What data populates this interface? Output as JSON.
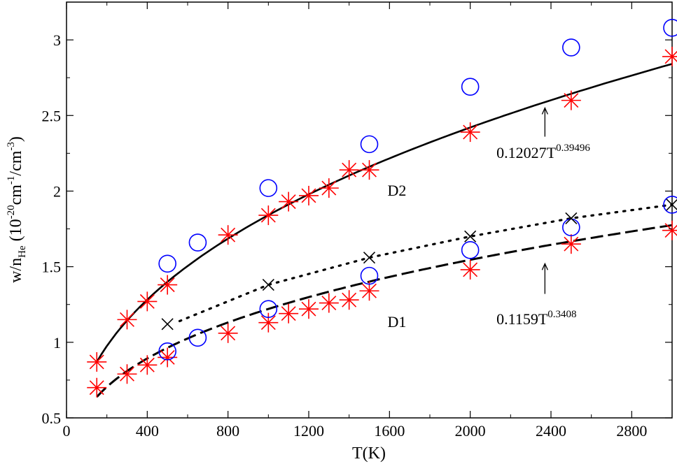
{
  "chart_data": {
    "type": "scatter",
    "title": "",
    "xlabel": "T(K)",
    "ylabel_parts": {
      "main": "w/n",
      "sub": "He",
      "paren_open": " (10",
      "exp1": "-20",
      "mid": "cm",
      "exp2": "-1",
      "slash": "/cm",
      "exp3": "-3",
      "paren_close": ")"
    },
    "xlim": [
      0,
      3000
    ],
    "ylim": [
      0.5,
      3.25
    ],
    "xticks": [
      0,
      400,
      800,
      1200,
      1600,
      2000,
      2400,
      2800
    ],
    "yticks": [
      0.5,
      1,
      1.5,
      2,
      2.5,
      3
    ],
    "grid": false,
    "colors": {
      "star": "#ff0000",
      "circle": "#0000ff",
      "cross": "#000000",
      "line": "#000000"
    },
    "series": [
      {
        "marker": "star",
        "x": [
          150,
          300,
          400,
          500,
          800,
          1000,
          1100,
          1200,
          1300,
          1400,
          1500,
          2000,
          2500,
          3000
        ],
        "y": [
          0.87,
          1.15,
          1.27,
          1.38,
          1.71,
          1.84,
          1.93,
          1.97,
          2.02,
          2.14,
          2.14,
          2.39,
          2.6,
          2.89
        ]
      },
      {
        "marker": "circle",
        "x": [
          500,
          650,
          1000,
          1500,
          2000,
          2500,
          3000
        ],
        "y": [
          1.52,
          1.66,
          2.02,
          2.31,
          2.69,
          2.95,
          3.08
        ]
      },
      {
        "marker": "star",
        "x": [
          150,
          300,
          400,
          500,
          800,
          1000,
          1100,
          1200,
          1300,
          1400,
          1500,
          2000,
          2500,
          3000
        ],
        "y": [
          0.7,
          0.79,
          0.85,
          0.9,
          1.06,
          1.13,
          1.19,
          1.22,
          1.26,
          1.28,
          1.34,
          1.48,
          1.65,
          1.74
        ]
      },
      {
        "marker": "circle",
        "x": [
          500,
          650,
          1000,
          1500,
          2000,
          2500,
          3000
        ],
        "y": [
          0.94,
          1.03,
          1.22,
          1.44,
          1.61,
          1.76,
          1.91
        ]
      },
      {
        "marker": "cross",
        "x": [
          500,
          1000,
          1500,
          2000,
          2500,
          3000
        ],
        "y": [
          1.12,
          1.38,
          1.56,
          1.7,
          1.82,
          1.91
        ]
      }
    ],
    "fits": [
      {
        "style": "solid",
        "a": 0.12027,
        "b": 0.39496,
        "xrange": [
          150,
          3000
        ]
      },
      {
        "style": "dashed",
        "a": 0.1159,
        "b": 0.3408,
        "xrange": [
          150,
          3000
        ]
      },
      {
        "style": "dotted",
        "x": [
          560,
          1000,
          1500,
          2000,
          2500,
          3000
        ],
        "y": [
          1.14,
          1.38,
          1.56,
          1.7,
          1.82,
          1.91
        ]
      }
    ],
    "annotations": [
      {
        "id": "d2",
        "text": "D2",
        "x": 1590,
        "y": 1.97
      },
      {
        "id": "d1",
        "text": "D1",
        "x": 1590,
        "y": 1.1
      },
      {
        "id": "fit2",
        "base": "0.12027T",
        "exp": "0.39496",
        "x": 2130,
        "y": 2.22,
        "arrow_x": 2370,
        "arrow_from": 2.36,
        "arrow_to": 2.55
      },
      {
        "id": "fit1",
        "base": "0.1159T",
        "exp": "0.3408",
        "x": 2130,
        "y": 1.12,
        "arrow_x": 2370,
        "arrow_from": 1.32,
        "arrow_to": 1.52
      }
    ]
  }
}
